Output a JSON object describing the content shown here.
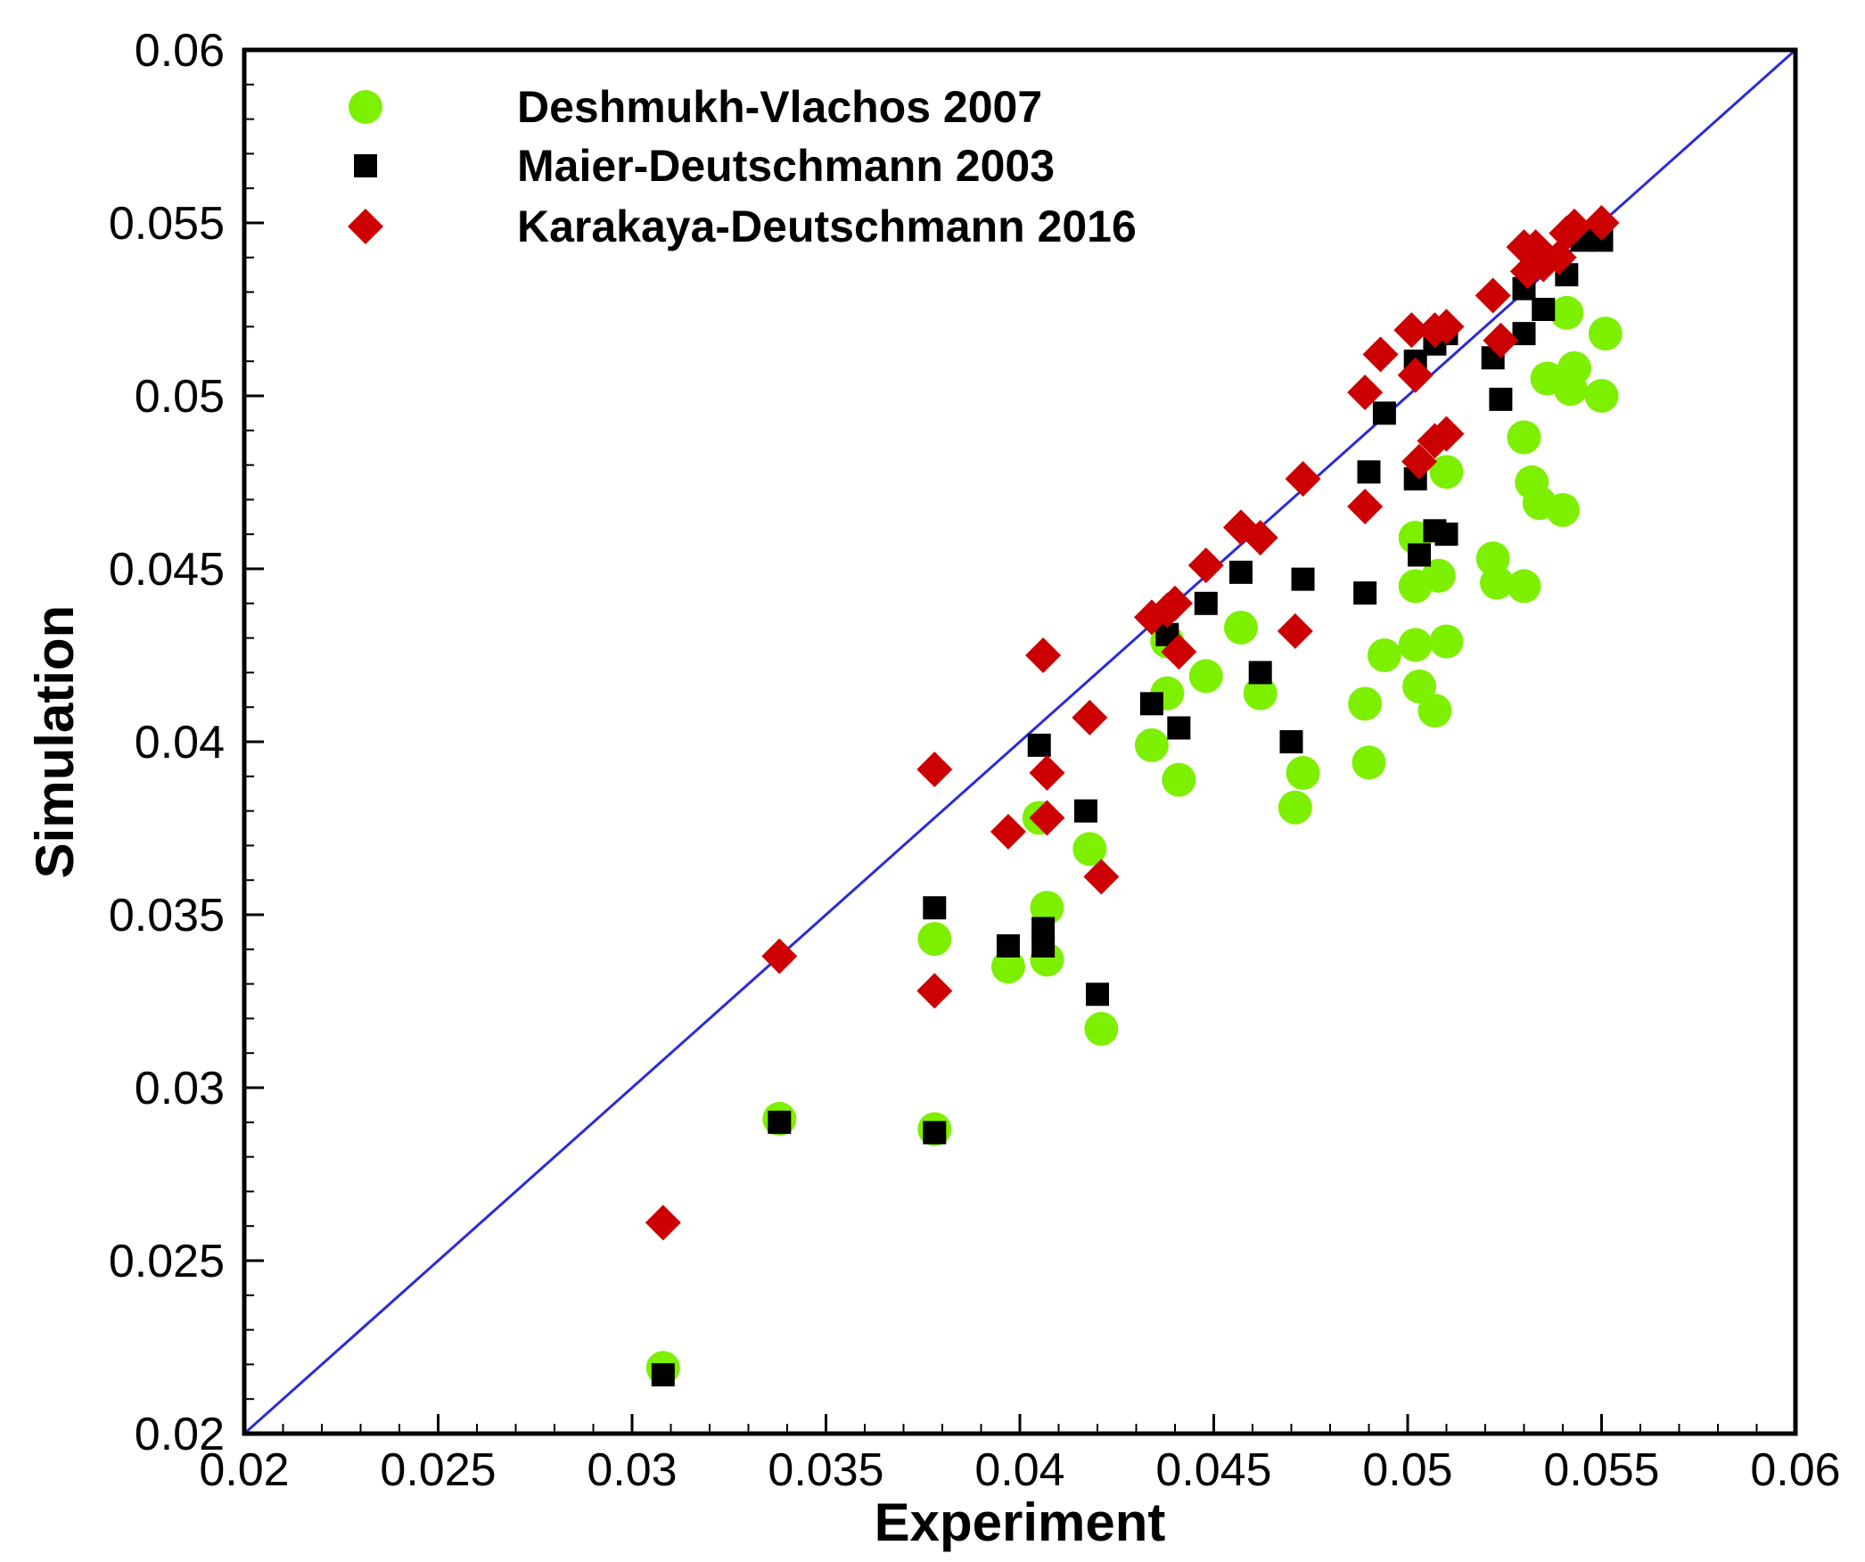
{
  "chart_data": {
    "type": "scatter",
    "title": "",
    "xlabel": "Experiment",
    "ylabel": "Simulation",
    "xlim": [
      0.02,
      0.06
    ],
    "ylim": [
      0.02,
      0.06
    ],
    "xticks": [
      "0.02",
      "0.025",
      "0.03",
      "0.035",
      "0.04",
      "0.045",
      "0.05",
      "0.055",
      "0.06"
    ],
    "yticks": [
      "0.02",
      "0.025",
      "0.03",
      "0.035",
      "0.04",
      "0.045",
      "0.05",
      "0.055",
      "0.06"
    ],
    "reference_line": {
      "name": "y = x",
      "color": "#2b2bd8"
    },
    "legend_position": "top-left",
    "series": [
      {
        "name": "Deshmukh-Vlachos 2007",
        "marker": "circle",
        "color": "#7df000",
        "points": [
          [
            0.0308,
            0.0219
          ],
          [
            0.0338,
            0.0291
          ],
          [
            0.0378,
            0.0288
          ],
          [
            0.0378,
            0.0343
          ],
          [
            0.0397,
            0.0335
          ],
          [
            0.0407,
            0.0337
          ],
          [
            0.0407,
            0.0352
          ],
          [
            0.0405,
            0.0378
          ],
          [
            0.0418,
            0.0369
          ],
          [
            0.0421,
            0.0317
          ],
          [
            0.0434,
            0.0399
          ],
          [
            0.0438,
            0.0414
          ],
          [
            0.0438,
            0.0429
          ],
          [
            0.0441,
            0.0389
          ],
          [
            0.0448,
            0.0419
          ],
          [
            0.0457,
            0.0433
          ],
          [
            0.0462,
            0.0414
          ],
          [
            0.0471,
            0.0381
          ],
          [
            0.0473,
            0.0391
          ],
          [
            0.0489,
            0.0411
          ],
          [
            0.049,
            0.0394
          ],
          [
            0.0494,
            0.0425
          ],
          [
            0.0502,
            0.0428
          ],
          [
            0.0503,
            0.0416
          ],
          [
            0.0502,
            0.0445
          ],
          [
            0.0502,
            0.0459
          ],
          [
            0.0507,
            0.0409
          ],
          [
            0.0508,
            0.0448
          ],
          [
            0.051,
            0.0429
          ],
          [
            0.051,
            0.0478
          ],
          [
            0.0522,
            0.0453
          ],
          [
            0.0523,
            0.0446
          ],
          [
            0.053,
            0.0445
          ],
          [
            0.053,
            0.0488
          ],
          [
            0.0532,
            0.0475
          ],
          [
            0.0534,
            0.0469
          ],
          [
            0.0536,
            0.0505
          ],
          [
            0.054,
            0.0467
          ],
          [
            0.0541,
            0.0524
          ],
          [
            0.0542,
            0.0502
          ],
          [
            0.0543,
            0.0508
          ],
          [
            0.055,
            0.05
          ],
          [
            0.0551,
            0.0518
          ]
        ]
      },
      {
        "name": "Maier-Deutschmann 2003",
        "marker": "square",
        "color": "#000000",
        "points": [
          [
            0.0308,
            0.0217
          ],
          [
            0.0338,
            0.029
          ],
          [
            0.0378,
            0.0287
          ],
          [
            0.0378,
            0.0352
          ],
          [
            0.0397,
            0.0341
          ],
          [
            0.0406,
            0.0341
          ],
          [
            0.0406,
            0.0346
          ],
          [
            0.0405,
            0.0399
          ],
          [
            0.0417,
            0.038
          ],
          [
            0.042,
            0.0327
          ],
          [
            0.0434,
            0.0411
          ],
          [
            0.0438,
            0.0431
          ],
          [
            0.0441,
            0.0404
          ],
          [
            0.0448,
            0.044
          ],
          [
            0.0457,
            0.0449
          ],
          [
            0.0462,
            0.042
          ],
          [
            0.047,
            0.04
          ],
          [
            0.0473,
            0.0447
          ],
          [
            0.0489,
            0.0443
          ],
          [
            0.049,
            0.0478
          ],
          [
            0.0494,
            0.0495
          ],
          [
            0.0502,
            0.0476
          ],
          [
            0.0502,
            0.051
          ],
          [
            0.0503,
            0.0454
          ],
          [
            0.0507,
            0.0461
          ],
          [
            0.0507,
            0.0515
          ],
          [
            0.051,
            0.046
          ],
          [
            0.051,
            0.0518
          ],
          [
            0.0522,
            0.0511
          ],
          [
            0.0524,
            0.0499
          ],
          [
            0.053,
            0.0518
          ],
          [
            0.053,
            0.0531
          ],
          [
            0.0535,
            0.0525
          ],
          [
            0.0541,
            0.0535
          ],
          [
            0.0545,
            0.0545
          ],
          [
            0.055,
            0.0545
          ]
        ]
      },
      {
        "name": "Karakaya-Deutschmann 2016",
        "marker": "diamond",
        "color": "#cc0000",
        "points": [
          [
            0.0308,
            0.0261
          ],
          [
            0.0338,
            0.0338
          ],
          [
            0.0378,
            0.0328
          ],
          [
            0.0378,
            0.0392
          ],
          [
            0.0397,
            0.0374
          ],
          [
            0.0406,
            0.0425
          ],
          [
            0.0407,
            0.0378
          ],
          [
            0.0407,
            0.0391
          ],
          [
            0.0418,
            0.0407
          ],
          [
            0.0421,
            0.0361
          ],
          [
            0.0434,
            0.0436
          ],
          [
            0.0438,
            0.0438
          ],
          [
            0.044,
            0.044
          ],
          [
            0.0441,
            0.0426
          ],
          [
            0.0448,
            0.0451
          ],
          [
            0.0457,
            0.0462
          ],
          [
            0.0462,
            0.0459
          ],
          [
            0.0471,
            0.0432
          ],
          [
            0.0473,
            0.0476
          ],
          [
            0.0489,
            0.0468
          ],
          [
            0.0489,
            0.0501
          ],
          [
            0.0493,
            0.0512
          ],
          [
            0.0501,
            0.0519
          ],
          [
            0.0502,
            0.0506
          ],
          [
            0.0503,
            0.0481
          ],
          [
            0.0507,
            0.0519
          ],
          [
            0.0507,
            0.0487
          ],
          [
            0.051,
            0.0489
          ],
          [
            0.051,
            0.052
          ],
          [
            0.0522,
            0.0529
          ],
          [
            0.0524,
            0.0516
          ],
          [
            0.053,
            0.0543
          ],
          [
            0.0531,
            0.0536
          ],
          [
            0.0533,
            0.0543
          ],
          [
            0.0535,
            0.0538
          ],
          [
            0.0539,
            0.054
          ],
          [
            0.0541,
            0.0547
          ],
          [
            0.0543,
            0.0549
          ],
          [
            0.055,
            0.055
          ]
        ]
      }
    ]
  }
}
